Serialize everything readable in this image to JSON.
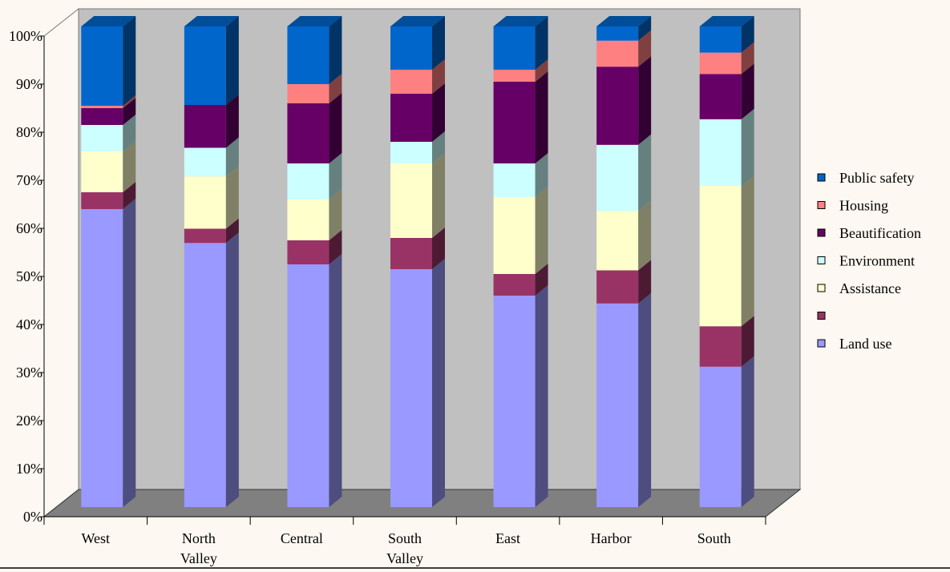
{
  "chart_data": {
    "type": "bar",
    "stacked": "percent",
    "three_d": true,
    "categories": [
      "West",
      "North Valley",
      "Central",
      "South Valley",
      "East",
      "Harbor",
      "South"
    ],
    "series": [
      {
        "name": "Land use",
        "color": "#9999ff",
        "values": [
          62,
          55.5,
          50.5,
          49.5,
          44,
          43,
          29.5
        ]
      },
      {
        "name": "",
        "color": "#993366",
        "values": [
          3.5,
          3,
          5,
          6.5,
          4.5,
          7,
          8.5
        ]
      },
      {
        "name": "Assistance",
        "color": "#ffffcc",
        "values": [
          8.5,
          11,
          8.5,
          15.5,
          16,
          12.5,
          29.5
        ]
      },
      {
        "name": "Environment",
        "color": "#ccffff",
        "values": [
          5.5,
          6,
          7.5,
          4.5,
          7,
          14,
          14
        ]
      },
      {
        "name": "Beautification",
        "color": "#660066",
        "values": [
          3.5,
          9,
          12.5,
          10,
          17,
          16.5,
          9.5
        ]
      },
      {
        "name": "Housing",
        "color": "#ff8080",
        "values": [
          0.5,
          0,
          4,
          5,
          2.5,
          5.5,
          4.5
        ]
      },
      {
        "name": "Public safety",
        "color": "#0066cc",
        "values": [
          16.5,
          16.5,
          12,
          9,
          9,
          3,
          5.5
        ]
      }
    ],
    "y_ticks": [
      "0%",
      "10%",
      "20%",
      "30%",
      "40%",
      "50%",
      "60%",
      "70%",
      "80%",
      "90%",
      "100%"
    ],
    "ylim": [
      0,
      100
    ],
    "legend_placement": "right",
    "legend_order": [
      "Public safety",
      "Housing",
      "Beautification",
      "Environment",
      "Assistance",
      "",
      "Land use"
    ],
    "colors": {
      "background": "#fdf8f1",
      "back_wall": "#c0c0c0",
      "floor": "#808080"
    }
  }
}
